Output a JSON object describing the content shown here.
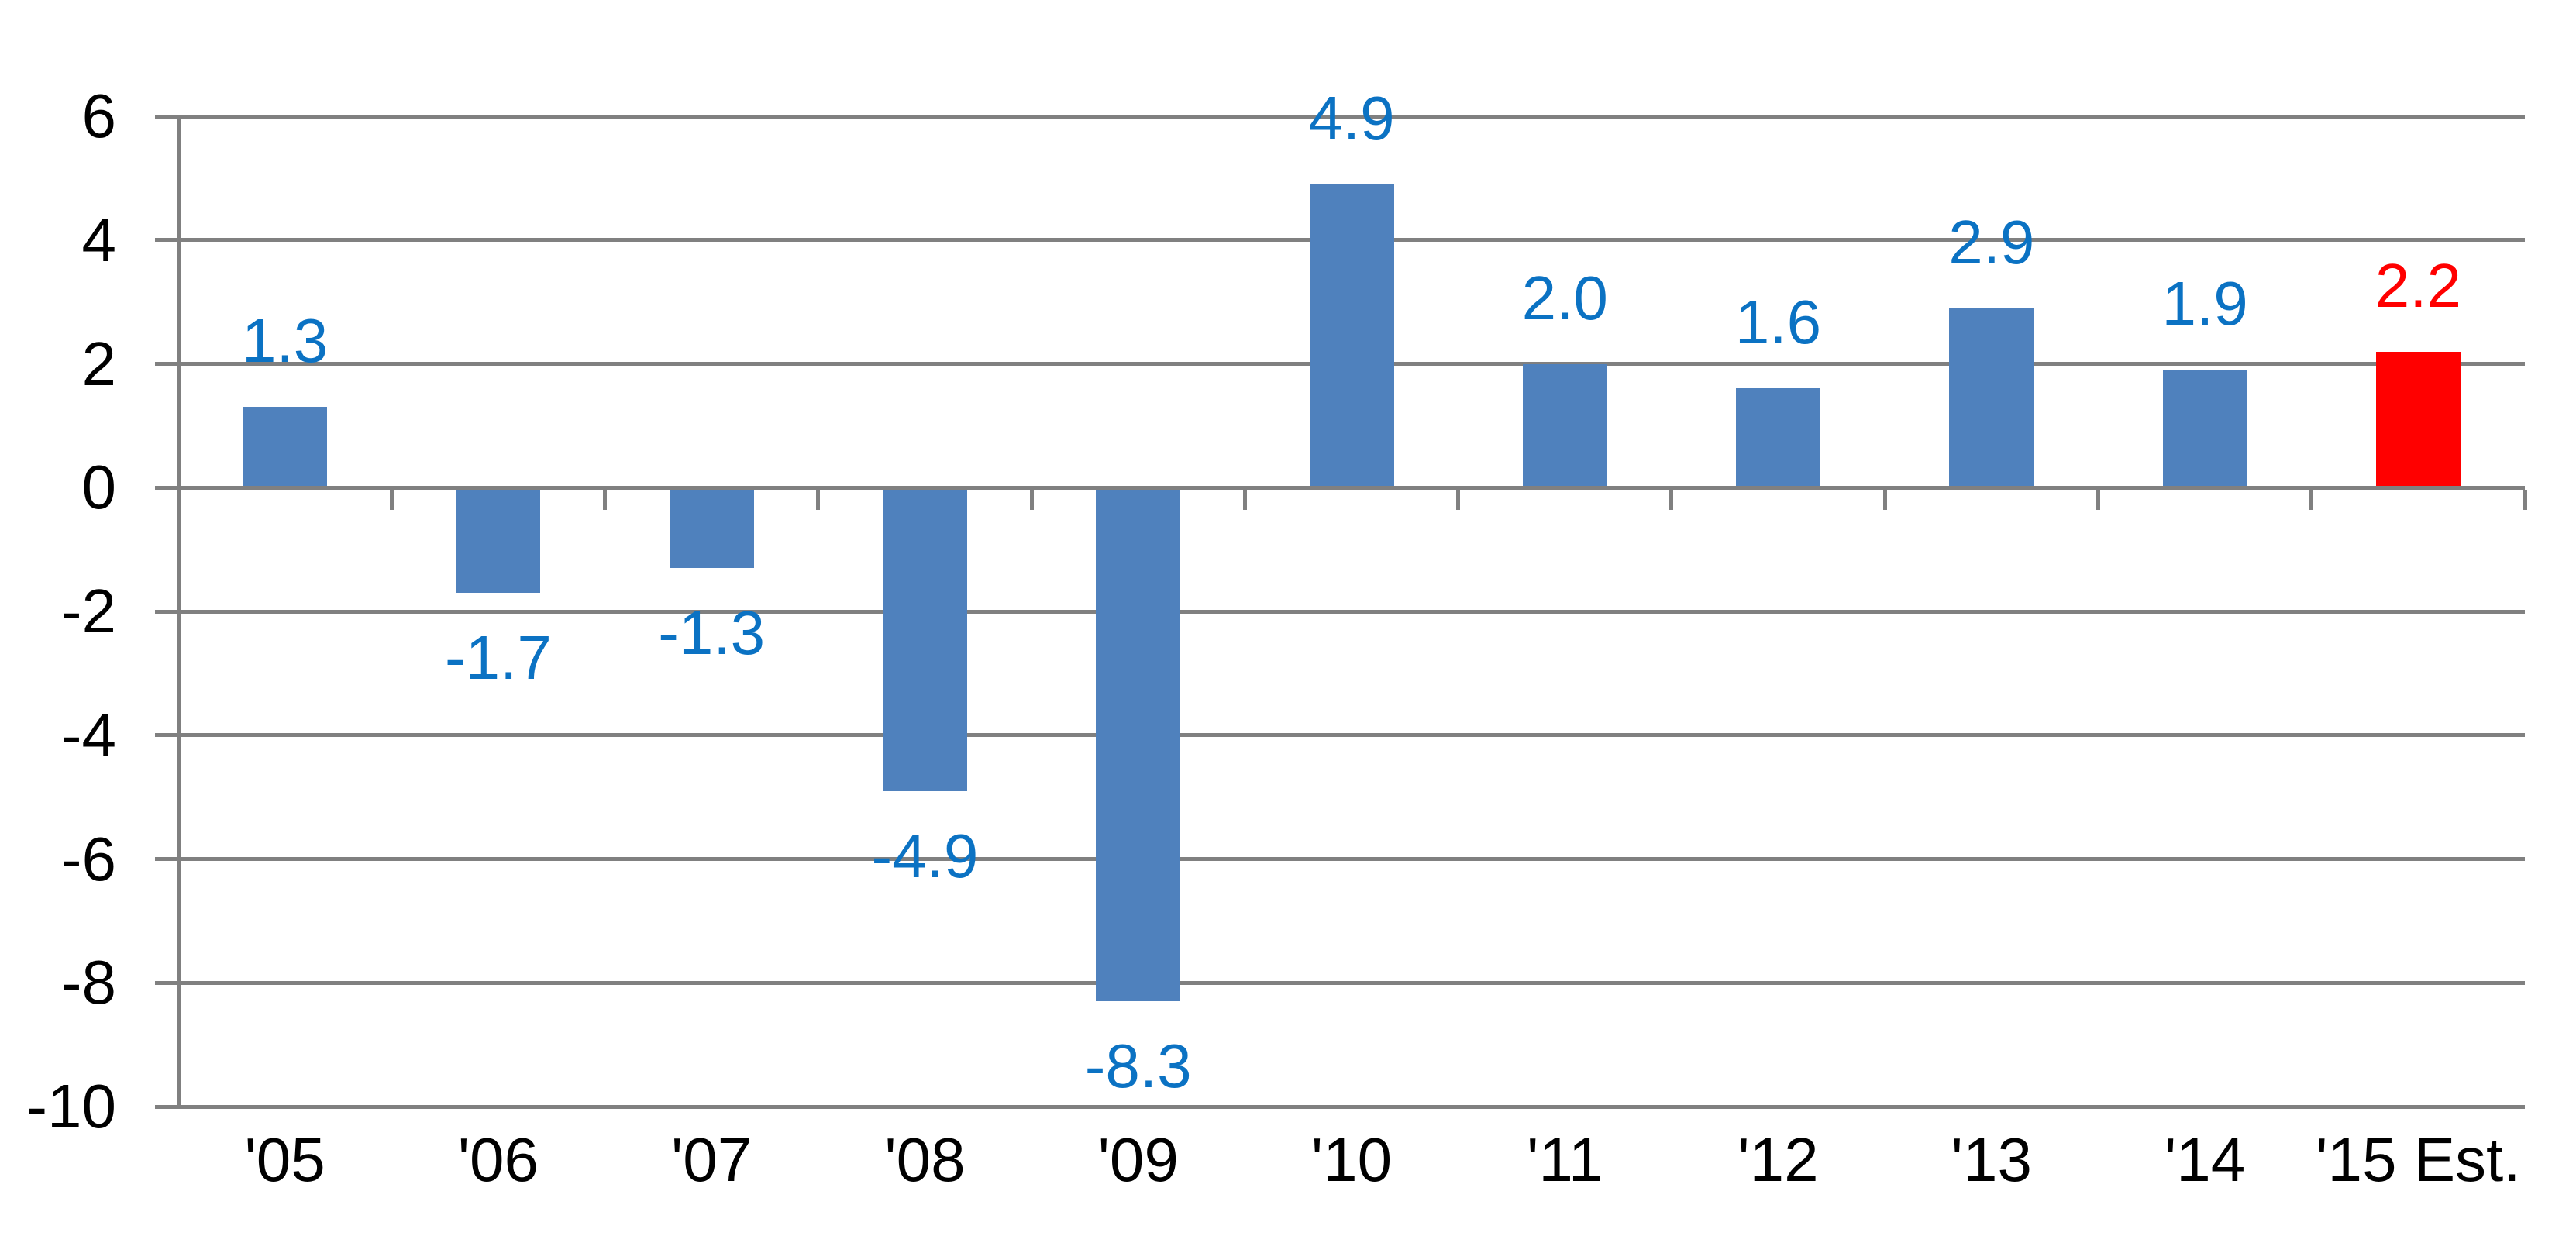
{
  "page": {
    "background": "#FFFFFF"
  },
  "chart_data": {
    "type": "bar",
    "categories": [
      "'05",
      "'06",
      "'07",
      "'08",
      "'09",
      "'10",
      "'11",
      "'12",
      "'13",
      "'14",
      "'15 Est."
    ],
    "values": [
      1.3,
      -1.7,
      -1.3,
      -4.9,
      -8.3,
      4.9,
      2.0,
      1.6,
      2.9,
      1.9,
      2.2
    ],
    "value_labels": [
      "1.3",
      "-1.7",
      "-1.3",
      "-4.9",
      "-8.3",
      "4.9",
      "2.0",
      "1.6",
      "2.9",
      "1.9",
      "2.2"
    ],
    "bar_colors": [
      "#4F81BD",
      "#4F81BD",
      "#4F81BD",
      "#4F81BD",
      "#4F81BD",
      "#4F81BD",
      "#4F81BD",
      "#4F81BD",
      "#4F81BD",
      "#4F81BD",
      "#FF0000"
    ],
    "value_label_colors": [
      "#0B72C3",
      "#0B72C3",
      "#0B72C3",
      "#0B72C3",
      "#0B72C3",
      "#0B72C3",
      "#0B72C3",
      "#0B72C3",
      "#0B72C3",
      "#0B72C3",
      "#FF0000"
    ],
    "highlighted_category": "'15 Est.",
    "yticks": [
      6,
      4,
      2,
      0,
      -2,
      -4,
      -6,
      -8,
      -10
    ],
    "ytick_labels": [
      "6",
      "4",
      "2",
      "0",
      "-2",
      "-4",
      "-6",
      "-8",
      "-10"
    ],
    "colors": {
      "default_bar": "#4F81BD",
      "highlight_bar": "#FF0000",
      "default_value_label": "#0B72C3",
      "highlight_value_label": "#FF0000",
      "gridline": "#808080",
      "axis_line": "#808080",
      "tick_label_text": "#000000"
    },
    "layout_hints": {
      "ylim": [
        -10,
        6
      ],
      "grid": true,
      "legend": "none",
      "value_label_position": "outside-end",
      "gap_width_percent": 150,
      "category_axis_ticks": "below-zero-line"
    }
  }
}
